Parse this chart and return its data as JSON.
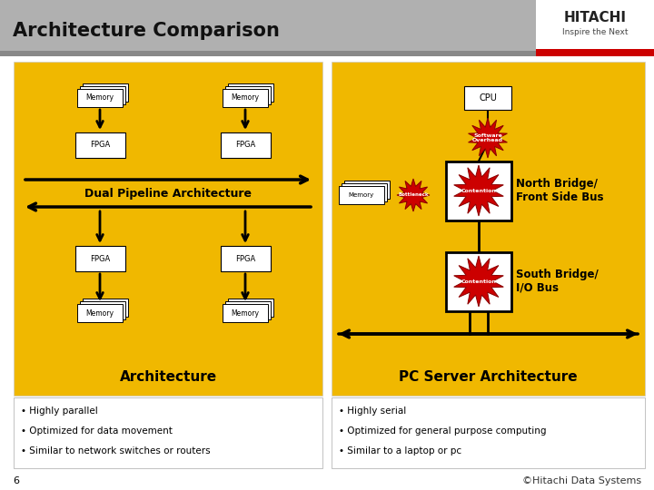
{
  "title": "Architecture Comparison",
  "title_fontsize": 15,
  "title_color": "#111111",
  "header_bg": "#aaaaaa",
  "header_dark": "#888888",
  "header_red": "#cc0000",
  "slide_bg": "#ffffff",
  "panel_bg": "#f0b800",
  "left_panel_title": "Architecture",
  "right_panel_title": "PC Server Architecture",
  "left_bullets": [
    "• Highly parallel",
    "• Optimized for data movement",
    "• Similar to network switches or routers"
  ],
  "right_bullets": [
    "• Highly serial",
    "• Optimized for general purpose computing",
    "• Similar to a laptop or pc"
  ],
  "left_center_label": "Dual Pipeline Architecture",
  "north_bridge_label": "North Bridge/\nFront Side Bus",
  "south_bridge_label": "South Bridge/\nI/O Bus",
  "cpu_label": "CPU",
  "software_overhead_label": "Software\nOverhead",
  "bottleneck_label": "Bottleneck",
  "contention_label": "Contention",
  "page_number": "6",
  "hitachi_text": "©Hitachi Data Systems",
  "hitachi_logo": "HITACHI",
  "hitachi_slogan": "Inspire the Next"
}
